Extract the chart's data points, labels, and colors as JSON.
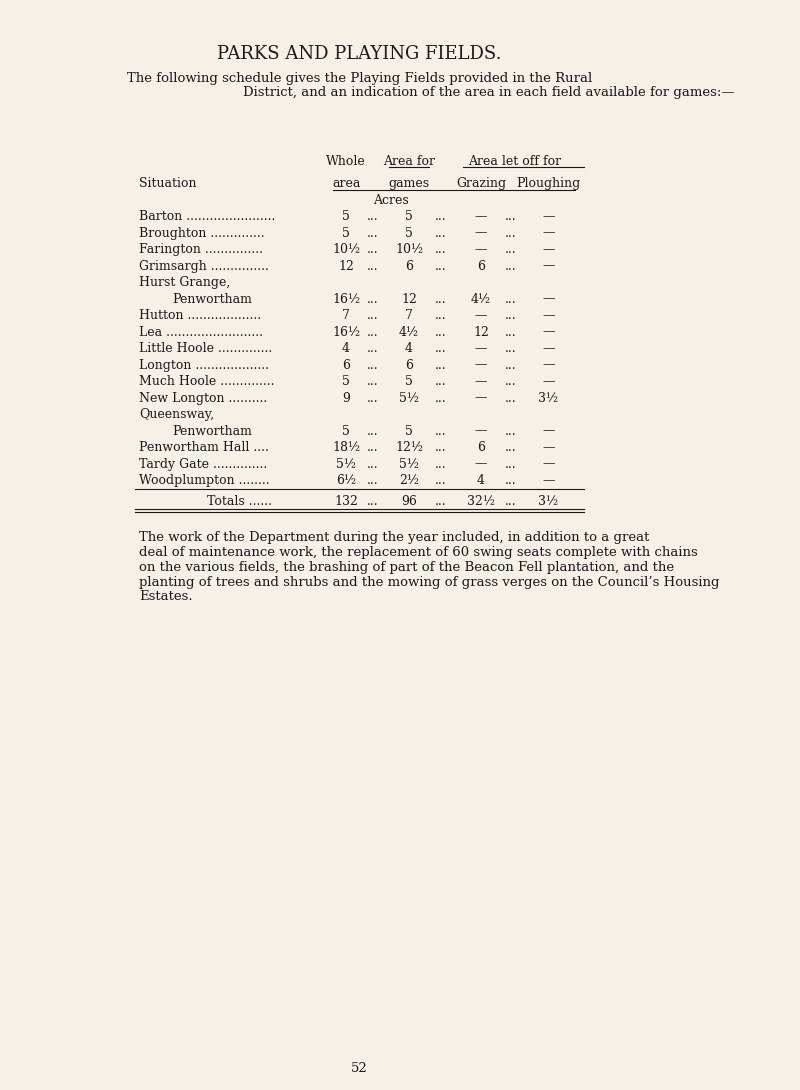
{
  "bg_color": "#f5f0e8",
  "title": "PARKS AND PLAYING FIELDS.",
  "intro_text": "The following schedule gives the Playing Fields provided in the Rural\nDistrict, and an indication of the area in each field available for games:—",
  "col_headers": {
    "situation": "Situation",
    "whole_area": "Whole\narea",
    "area_for_games": "Area for\ngames",
    "grazing": "Grazing",
    "ploughing": "Ploughing",
    "area_let_off_for": "Area let off for"
  },
  "acres_label": "Acres",
  "rows": [
    {
      "situation": "Barton .......................",
      "whole_area": "5",
      "dots1": "...",
      "games": "5",
      "dots2": "...",
      "grazing": "—",
      "dots3": "...",
      "ploughing": "—"
    },
    {
      "situation": "Broughton ..............",
      "whole_area": "5",
      "dots1": "...",
      "games": "5",
      "dots2": "...",
      "grazing": "—",
      "dots3": "...",
      "ploughing": "—"
    },
    {
      "situation": "Farington ...............",
      "whole_area": "10½",
      "dots1": "...",
      "games": "10½",
      "dots2": "...",
      "grazing": "—",
      "dots3": "...",
      "ploughing": "—"
    },
    {
      "situation": "Grimsargh ...............",
      "whole_area": "12",
      "dots1": "...",
      "games": "6",
      "dots2": "...",
      "grazing": "6",
      "dots3": "...",
      "ploughing": "—"
    },
    {
      "situation": "Hurst Grange,",
      "whole_area": "",
      "dots1": "",
      "games": "",
      "dots2": "",
      "grazing": "",
      "dots3": "",
      "ploughing": ""
    },
    {
      "situation": "            Penwortham",
      "whole_area": "16½",
      "dots1": "...",
      "games": "12",
      "dots2": "...",
      "grazing": "4½",
      "dots3": "...",
      "ploughing": "—"
    },
    {
      "situation": "Hutton ...................",
      "whole_area": "7",
      "dots1": "...",
      "games": "7",
      "dots2": "...",
      "grazing": "—",
      "dots3": "...",
      "ploughing": "—"
    },
    {
      "situation": "Lea .........................",
      "whole_area": "16½",
      "dots1": "...",
      "games": "4½",
      "dots2": "...",
      "grazing": "12",
      "dots3": "...",
      "ploughing": "—"
    },
    {
      "situation": "Little Hoole ..............",
      "whole_area": "4",
      "dots1": "...",
      "games": "4",
      "dots2": "...",
      "grazing": "—",
      "dots3": "...",
      "ploughing": "—"
    },
    {
      "situation": "Longton ...................",
      "whole_area": "6",
      "dots1": "...",
      "games": "6",
      "dots2": "...",
      "grazing": "—",
      "dots3": "...",
      "ploughing": "—"
    },
    {
      "situation": "Much Hoole ..............",
      "whole_area": "5",
      "dots1": "...",
      "games": "5",
      "dots2": "...",
      "grazing": "—",
      "dots3": "...",
      "ploughing": "—"
    },
    {
      "situation": "New Longton ..........",
      "whole_area": "9",
      "dots1": "...",
      "games": "5½",
      "dots2": "...",
      "grazing": "—",
      "dots3": "...",
      "ploughing": "3½"
    },
    {
      "situation": "Queensway,",
      "whole_area": "",
      "dots1": "",
      "games": "",
      "dots2": "",
      "grazing": "",
      "dots3": "",
      "ploughing": ""
    },
    {
      "situation": "            Penwortham",
      "whole_area": "5",
      "dots1": "...",
      "games": "5",
      "dots2": "...",
      "grazing": "—",
      "dots3": "...",
      "ploughing": "—"
    },
    {
      "situation": "Penwortham Hall ....",
      "whole_area": "18½",
      "dots1": "...",
      "games": "12½",
      "dots2": "...",
      "grazing": "6",
      "dots3": "...",
      "ploughing": "—"
    },
    {
      "situation": "Tardy Gate ..............",
      "whole_area": "5½",
      "dots1": "...",
      "games": "5½",
      "dots2": "...",
      "grazing": "—",
      "dots3": "...",
      "ploughing": "—"
    },
    {
      "situation": "Woodplumpton ........",
      "whole_area": "6½",
      "dots1": "...",
      "games": "2½",
      "dots2": "...",
      "grazing": "4",
      "dots3": "...",
      "ploughing": "—"
    }
  ],
  "totals": {
    "label": "Totals ......",
    "whole_area": "132",
    "dots1": "...",
    "games": "96",
    "dots2": "...",
    "grazing": "32½",
    "dots3": "...",
    "ploughing": "3½"
  },
  "footer_text": "The work of the Department during the year included, in addition to a great\ndeal of maintenance work, the replacement of 60 swing seats complete with chains\non the various fields, the brashing of part of the Beacon Fell plantation, and the\nplanting of trees and shrubs and the mowing of grass verges on the Council’s Housing\nEstates.",
  "page_number": "52",
  "font_size_title": 13,
  "font_size_body": 9.5,
  "font_size_table": 9.0
}
